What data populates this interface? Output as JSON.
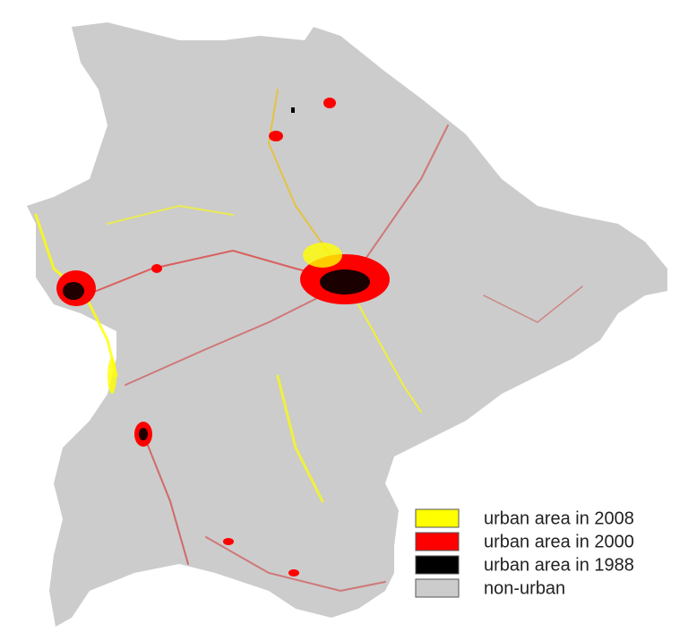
{
  "legend": {
    "items": [
      {
        "label": "urban area in 2008",
        "color": "#ffff00"
      },
      {
        "label": "urban area in 2000",
        "color": "#ff0000"
      },
      {
        "label": "urban area in 1988",
        "color": "#000000"
      },
      {
        "label": "non-urban",
        "color": "#cccccc"
      }
    ]
  }
}
